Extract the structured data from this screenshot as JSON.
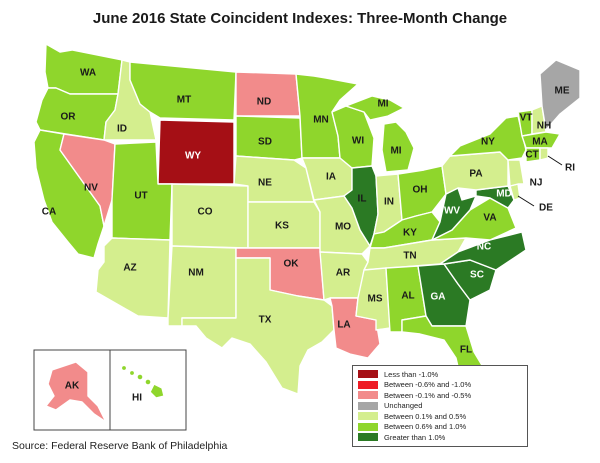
{
  "title": "June 2016 State Coincident Indexes: Three-Month Change",
  "source": "Source: Federal Reserve Bank of Philadelphia",
  "colors": {
    "lt_neg1": "#a50f15",
    "neg06_neg1": "#ee1c25",
    "neg01_neg05": "#f28b8b",
    "unchanged": "#a6a6a6",
    "p01_p05": "#d4ee8e",
    "p06_p10": "#8fd62c",
    "gt_p1": "#2b7a24"
  },
  "legend": [
    {
      "key": "lt_neg1",
      "label": "Less than -1.0%"
    },
    {
      "key": "neg06_neg1",
      "label": "Between -0.6% and -1.0%"
    },
    {
      "key": "neg01_neg05",
      "label": "Between -0.1% and -0.5%"
    },
    {
      "key": "unchanged",
      "label": "Unchanged"
    },
    {
      "key": "p01_p05",
      "label": "Between 0.1% and 0.5%"
    },
    {
      "key": "p06_p10",
      "label": "Between 0.6% and 1.0%"
    },
    {
      "key": "gt_p1",
      "label": "Greater than 1.0%"
    }
  ],
  "states": {
    "WA": "p06_p10",
    "OR": "p06_p10",
    "CA": "p06_p10",
    "ID": "p01_p05",
    "NV": "neg01_neg05",
    "MT": "p06_p10",
    "WY": "lt_neg1",
    "UT": "p06_p10",
    "AZ": "p01_p05",
    "CO": "p01_p05",
    "NM": "p01_p05",
    "ND": "neg01_neg05",
    "SD": "p06_p10",
    "NE": "p01_p05",
    "KS": "p01_p05",
    "OK": "neg01_neg05",
    "TX": "p01_p05",
    "MN": "p06_p10",
    "IA": "p01_p05",
    "MO": "p01_p05",
    "AR": "p01_p05",
    "LA": "neg01_neg05",
    "WI": "p06_p10",
    "IL": "gt_p1",
    "MI": "p06_p10",
    "IN": "p01_p05",
    "OH": "p06_p10",
    "KY": "p06_p10",
    "TN": "p01_p05",
    "MS": "p01_p05",
    "AL": "p06_p10",
    "GA": "gt_p1",
    "FL": "p06_p10",
    "SC": "gt_p1",
    "NC": "gt_p1",
    "VA": "p06_p10",
    "WV": "gt_p1",
    "PA": "p01_p05",
    "NY": "p06_p10",
    "VT": "p06_p10",
    "NH": "p01_p05",
    "ME": "unchanged",
    "MA": "p06_p10",
    "CT": "p06_p10",
    "RI": "p01_p05",
    "NJ": "p01_p05",
    "DE": "p01_p05",
    "MD": "gt_p1",
    "AK": "neg01_neg05",
    "HI": "p06_p10"
  },
  "labels": {
    "WA": "WA",
    "OR": "OR",
    "CA": "CA",
    "ID": "ID",
    "NV": "NV",
    "MT": "MT",
    "WY": "WY",
    "UT": "UT",
    "AZ": "AZ",
    "CO": "CO",
    "NM": "NM",
    "ND": "ND",
    "SD": "SD",
    "NE": "NE",
    "KS": "KS",
    "OK": "OK",
    "TX": "TX",
    "MN": "MN",
    "IA": "IA",
    "MO": "MO",
    "AR": "AR",
    "LA": "LA",
    "WI": "WI",
    "IL": "IL",
    "MI": "MI",
    "MI2": "MI",
    "IN": "IN",
    "OH": "OH",
    "KY": "KY",
    "TN": "TN",
    "MS": "MS",
    "AL": "AL",
    "GA": "GA",
    "FL": "FL",
    "SC": "SC",
    "NC": "NC",
    "VA": "VA",
    "WV": "WV",
    "PA": "PA",
    "NY": "NY",
    "VT": "VT",
    "NH": "NH",
    "ME": "ME",
    "MA": "MA",
    "CT": "CT",
    "RI": "RI",
    "NJ": "NJ",
    "DE": "DE",
    "MD": "MD",
    "AK": "AK",
    "HI": "HI"
  }
}
